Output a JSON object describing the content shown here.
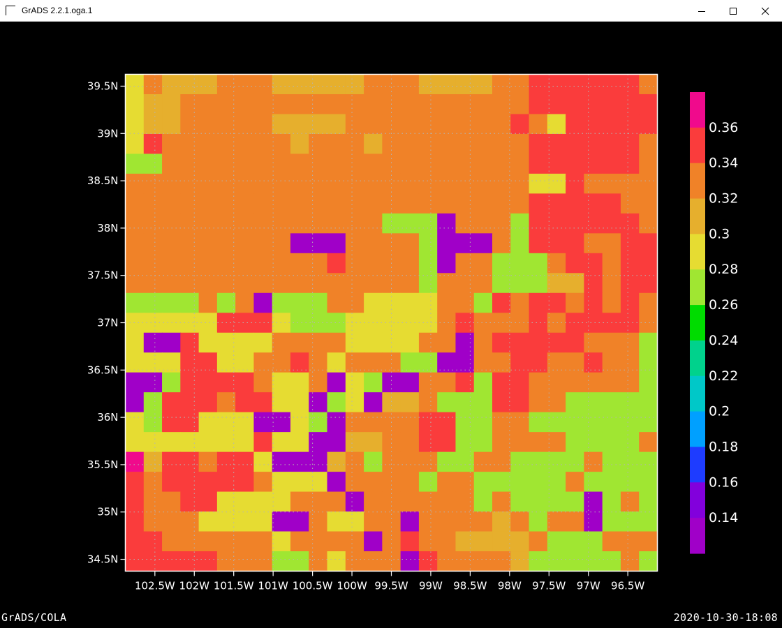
{
  "window": {
    "title": "GrADS 2.2.1.oga.1",
    "minimize_icon": "minimize-icon",
    "maximize_icon": "maximize-icon",
    "close_icon": "close-icon"
  },
  "footer": {
    "left": "GrADS/COLA",
    "right": "2020-10-30-18:08"
  },
  "chart_data": {
    "type": "heatmap",
    "title": "",
    "xlabel": "",
    "ylabel": "",
    "x_ticks": [
      "102.5W",
      "102W",
      "101.5W",
      "101W",
      "100.5W",
      "100W",
      "99.5W",
      "99W",
      "98.5W",
      "98W",
      "97.5W",
      "97W",
      "96.5W"
    ],
    "y_ticks": [
      "39.5N",
      "39N",
      "38.5N",
      "38N",
      "37.5N",
      "37N",
      "36.5N",
      "36N",
      "35.5N",
      "35N",
      "34.5N"
    ],
    "xlim": [
      -102.875,
      -96.125
    ],
    "ylim": [
      34.375,
      39.625
    ],
    "grid": true,
    "colorbar": {
      "placement": "right",
      "labels": [
        "0.36",
        "0.34",
        "0.32",
        "0.3",
        "0.28",
        "0.26",
        "0.24",
        "0.22",
        "0.2",
        "0.18",
        "0.16",
        "0.14"
      ],
      "colors": [
        "#f00a8c",
        "#fa3c3c",
        "#f08228",
        "#e6af2d",
        "#e6dc32",
        "#a0e632",
        "#00dc00",
        "#00d28c",
        "#00c8c8",
        "#00a0ff",
        "#1e3cff",
        "#8200dc",
        "#a000c8"
      ]
    },
    "classes": [
      "#f00a8c",
      "#fa3c3c",
      "#f08228",
      "#e6af2d",
      "#e6dc32",
      "#a0e632",
      "#00d28c",
      "#a000c8"
    ],
    "grid_values": [
      "42333222333332223333221111112",
      "43322222222222222222221111111",
      "43322222333322222222212411111",
      "41222222232223222222221111112",
      "55222222222222222222221111112",
      "22222222222222222222224412222",
      "22222222222222222222221111122",
      "22222222222222555722251111112",
      "22222222277722225777251112211",
      "22222222222122225722555211211",
      "22222222222222225222555331211",
      "55552527555224444225121121212",
      "44444111455544444212221211112",
      "47714444222244442272111112225",
      "44411442212422255772211221225",
      "77511112442745772215112222225",
      "75111211447547332555112255555",
      "45114447745722221155225555555",
      "44444441447733221155222255552",
      "03112114777325222552255552555",
      "12111112444722225225555525555",
      "12211444422272222225255557525",
      "12224444772442272222325227555",
      "11222222422227212233332555222",
      "11111222552422271222235555525"
    ]
  }
}
